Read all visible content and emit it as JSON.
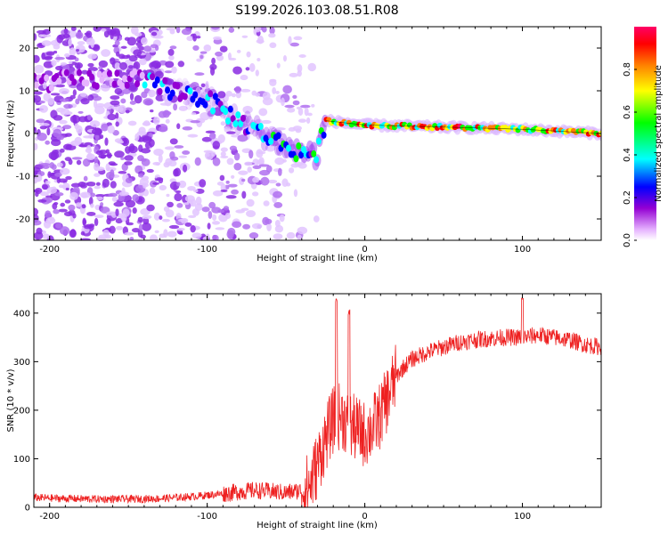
{
  "title": "S199.2026.103.08.51.R08",
  "chart_data": [
    {
      "type": "heatmap",
      "name": "spectrogram",
      "xlabel": "Height of straight line (km)",
      "ylabel": "Frequency (Hz)",
      "xlim": [
        -210,
        150
      ],
      "ylim": [
        -25,
        25
      ],
      "xticks": [
        -200,
        -100,
        0,
        100
      ],
      "xtick_labels": [
        "-200",
        "-100",
        "0",
        "100"
      ],
      "yticks": [
        -20,
        -10,
        0,
        10,
        20
      ],
      "ytick_labels": [
        "-20",
        "-10",
        "0",
        "10",
        "20"
      ],
      "colorbar": {
        "label": "Normalized spectral amplitude",
        "range": [
          0,
          1
        ],
        "ticks": [
          0.0,
          0.2,
          0.4,
          0.6,
          0.8
        ],
        "tick_labels": [
          "0.0",
          "0.2",
          "0.4",
          "0.6",
          "0.8"
        ],
        "colors": [
          "#ffffff",
          "#e6b3ff",
          "#9400d3",
          "#0000ff",
          "#00ffff",
          "#00ff00",
          "#ffff00",
          "#ff8000",
          "#ff0000",
          "#ff0066"
        ]
      },
      "ridge": {
        "description_points_x": [
          -210,
          -150,
          -120,
          -100,
          -80,
          -60,
          -45,
          -30,
          -25,
          0,
          50,
          100,
          150
        ],
        "description_points_y": [
          12,
          13,
          10,
          8,
          3,
          -1,
          -4,
          -5,
          3,
          2,
          1.5,
          1,
          0
        ]
      }
    },
    {
      "type": "line",
      "name": "snr",
      "xlabel": "Height of straight line (km)",
      "ylabel": "SNR (10 * v/v)",
      "xlim": [
        -210,
        150
      ],
      "ylim": [
        0,
        440
      ],
      "xticks": [
        -200,
        -100,
        0,
        100
      ],
      "xtick_labels": [
        "-200",
        "-100",
        "0",
        "100"
      ],
      "yticks": [
        0,
        100,
        200,
        300,
        400
      ],
      "ytick_labels": [
        "0",
        "100",
        "200",
        "300",
        "400"
      ],
      "series": [
        {
          "name": "SNR",
          "color": "#ee2020",
          "x": [
            -210,
            -190,
            -170,
            -150,
            -130,
            -110,
            -100,
            -90,
            -80,
            -70,
            -60,
            -50,
            -40,
            -35,
            -30,
            -25,
            -20,
            -15,
            -10,
            -5,
            0,
            5,
            10,
            15,
            20,
            25,
            30,
            40,
            50,
            60,
            70,
            80,
            90,
            100,
            110,
            120,
            130,
            140,
            150
          ],
          "y": [
            20,
            18,
            17,
            17,
            18,
            22,
            25,
            28,
            32,
            35,
            33,
            30,
            35,
            45,
            90,
            140,
            180,
            190,
            170,
            160,
            150,
            165,
            190,
            230,
            270,
            290,
            305,
            320,
            330,
            340,
            345,
            348,
            350,
            350,
            355,
            350,
            345,
            335,
            330
          ]
        }
      ],
      "spikes": [
        {
          "x": -18,
          "y": 430
        },
        {
          "x": -10,
          "y": 410
        },
        {
          "x": 100,
          "y": 440
        }
      ]
    }
  ]
}
